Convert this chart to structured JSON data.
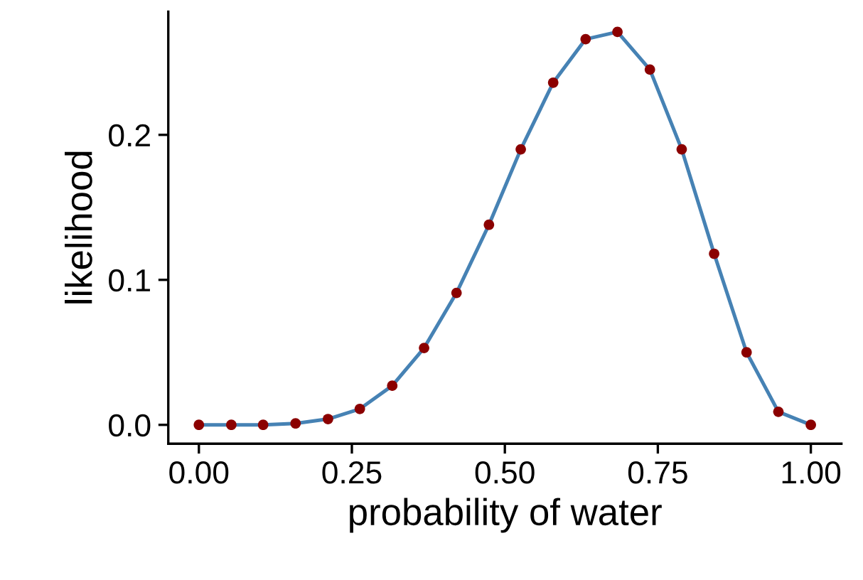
{
  "chart_data": {
    "type": "line",
    "xlabel": "probability of water",
    "ylabel": "likelihood",
    "x": [
      0,
      0.053,
      0.105,
      0.158,
      0.211,
      0.263,
      0.316,
      0.368,
      0.421,
      0.474,
      0.526,
      0.579,
      0.632,
      0.684,
      0.737,
      0.789,
      0.842,
      0.895,
      0.947,
      1
    ],
    "series": [
      {
        "type": "line",
        "color": "#4682b4",
        "values": [
          0,
          0,
          0,
          0.001,
          0.004,
          0.011,
          0.027,
          0.053,
          0.091,
          0.138,
          0.19,
          0.236,
          0.266,
          0.271,
          0.245,
          0.19,
          0.118,
          0.05,
          0.009,
          0
        ]
      },
      {
        "type": "scatter",
        "marker": "circle",
        "color": "#8b0000",
        "values": [
          0,
          0,
          0,
          0.001,
          0.004,
          0.011,
          0.027,
          0.053,
          0.091,
          0.138,
          0.19,
          0.236,
          0.266,
          0.271,
          0.245,
          0.19,
          0.118,
          0.05,
          0.009,
          0
        ]
      }
    ],
    "xlim": [
      -0.05,
      1.05
    ],
    "ylim": [
      -0.013,
      0.285
    ],
    "xticks": [
      {
        "value": 0,
        "label": "0.00"
      },
      {
        "value": 0.25,
        "label": "0.25"
      },
      {
        "value": 0.5,
        "label": "0.50"
      },
      {
        "value": 0.75,
        "label": "0.75"
      },
      {
        "value": 1,
        "label": "1.00"
      }
    ],
    "yticks": [
      {
        "value": 0,
        "label": "0.0"
      },
      {
        "value": 0.1,
        "label": "0.1"
      },
      {
        "value": 0.2,
        "label": "0.2"
      }
    ],
    "grid": false,
    "legend": false
  }
}
